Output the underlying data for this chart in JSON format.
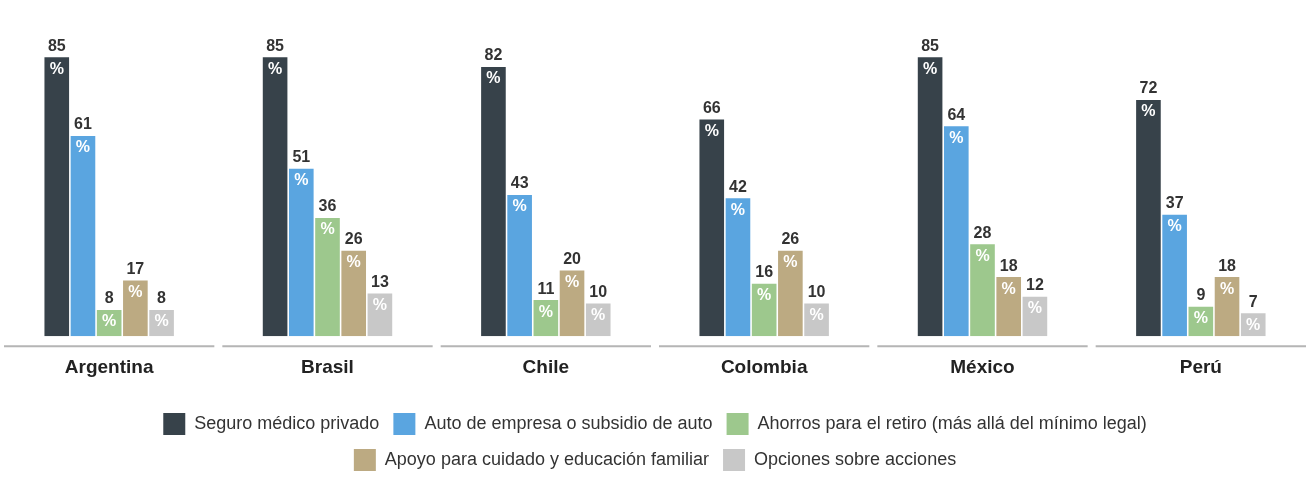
{
  "chart_data": {
    "type": "bar",
    "categories": [
      "Argentina",
      "Brasil",
      "Chile",
      "Colombia",
      "México",
      "Perú"
    ],
    "series": [
      {
        "name": "Seguro médico privado",
        "color": "#37424a",
        "values": [
          85,
          85,
          82,
          66,
          85,
          72
        ],
        "value_labels": [
          "85 %",
          "85 %",
          "82 %",
          "66 %",
          "85 %",
          "72 %"
        ]
      },
      {
        "name": "Auto de empresa o subsidio de auto",
        "color": "#5aa5e0",
        "values": [
          61,
          51,
          43,
          42,
          64,
          37
        ],
        "value_labels": [
          "61 %",
          "51 %",
          "43 %",
          "42 %",
          "64 %",
          "37 %"
        ]
      },
      {
        "name": "Ahorros para el retiro (más allá del mínimo legal)",
        "color": "#9dc88d",
        "values": [
          8,
          36,
          11,
          16,
          28,
          9
        ],
        "value_labels": [
          "8 %",
          "36 %",
          "11 %",
          "16 %",
          "28 %",
          "9 %"
        ]
      },
      {
        "name": "Apoyo para cuidado y educación familiar",
        "color": "#bcaa82",
        "values": [
          17,
          26,
          20,
          26,
          18,
          18
        ],
        "value_labels": [
          "17 %",
          "26 %",
          "20 %",
          "26 %",
          "18 %",
          "18 %"
        ]
      },
      {
        "name": "Opciones sobre acciones",
        "color": "#c8c8c8",
        "values": [
          8,
          13,
          10,
          10,
          12,
          7
        ],
        "value_labels": [
          "8 %",
          "13 %",
          "10 %",
          "10 %",
          "12 %",
          "7 %"
        ]
      }
    ],
    "legend": "bottom",
    "grid": false,
    "tick_labels": "x"
  }
}
